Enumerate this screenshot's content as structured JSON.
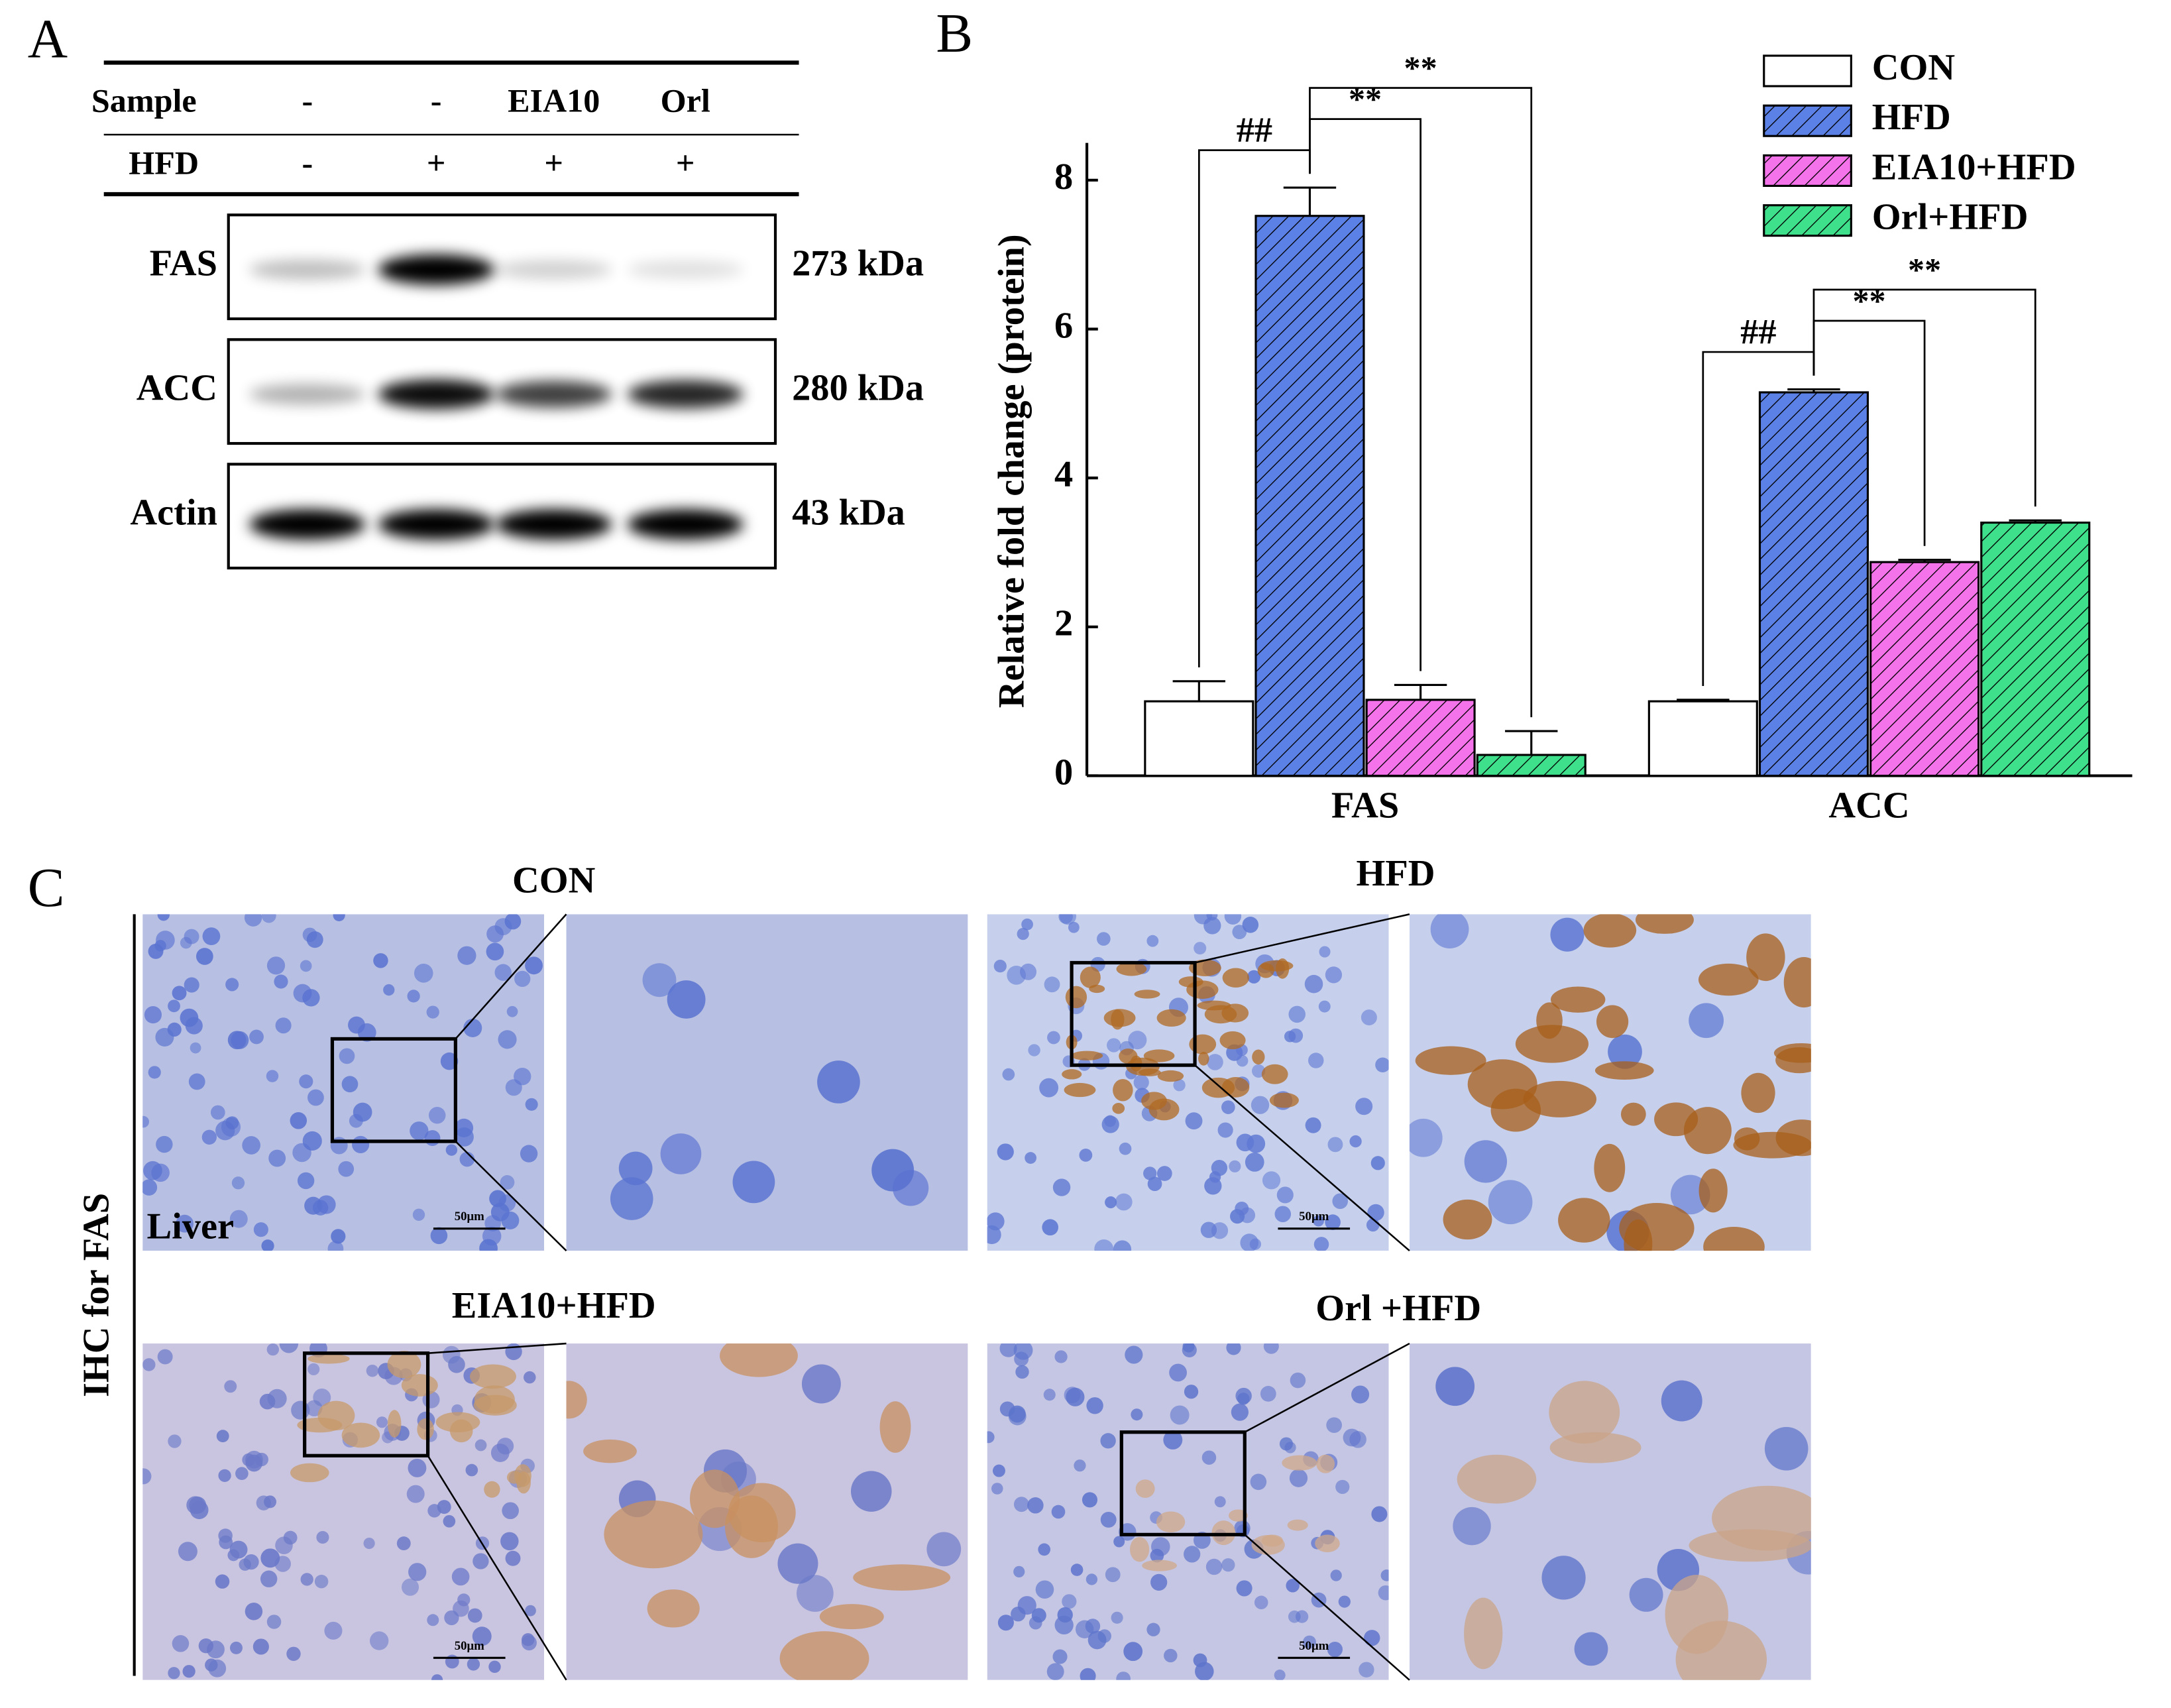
{
  "panel_labels": [
    "A",
    "B",
    "C"
  ],
  "western_blot": {
    "sample_label": "Sample",
    "samples": [
      "-",
      "-",
      "EIA10",
      "Orl"
    ],
    "hfd_label": "HFD",
    "hfd": [
      "-",
      "+",
      "+",
      "+"
    ],
    "bands": [
      {
        "name": "FAS",
        "size": "273 kDa"
      },
      {
        "name": "ACC",
        "size": "280 kDa"
      },
      {
        "name": "Actin",
        "size": "43 kDa"
      }
    ]
  },
  "chart_data": {
    "type": "bar",
    "y_label": "Relative fold change (protein)",
    "categories": [
      "FAS",
      "ACC"
    ],
    "series": [
      {
        "name": "CON",
        "color": "#ffffff",
        "values": [
          1.0,
          1.0
        ],
        "errors": [
          0.27,
          0.02
        ]
      },
      {
        "name": "HFD",
        "color": "#5b80e6",
        "values": [
          7.52,
          5.15
        ],
        "errors": [
          0.38,
          0.04
        ]
      },
      {
        "name": "EIA10+HFD",
        "color": "#f472ea",
        "values": [
          1.02,
          2.87
        ],
        "errors": [
          0.2,
          0.03
        ]
      },
      {
        "name": "Orl+HFD",
        "color": "#3ee08c",
        "values": [
          0.28,
          3.4
        ],
        "errors": [
          0.32,
          0.03
        ]
      }
    ],
    "significance": [
      [
        "##",
        "**",
        "**"
      ],
      [
        "##",
        "**",
        "**"
      ]
    ],
    "ylim": [
      0,
      8.5
    ],
    "yticks": [
      0,
      2,
      4,
      6,
      8
    ],
    "legend": "top-right"
  },
  "ihc": {
    "y_label": "IHC for FAS",
    "tissue": "Liver",
    "groups": [
      "CON",
      "HFD",
      "EIA10+HFD",
      "Orl +HFD"
    ],
    "scale_bar": "50μm"
  }
}
